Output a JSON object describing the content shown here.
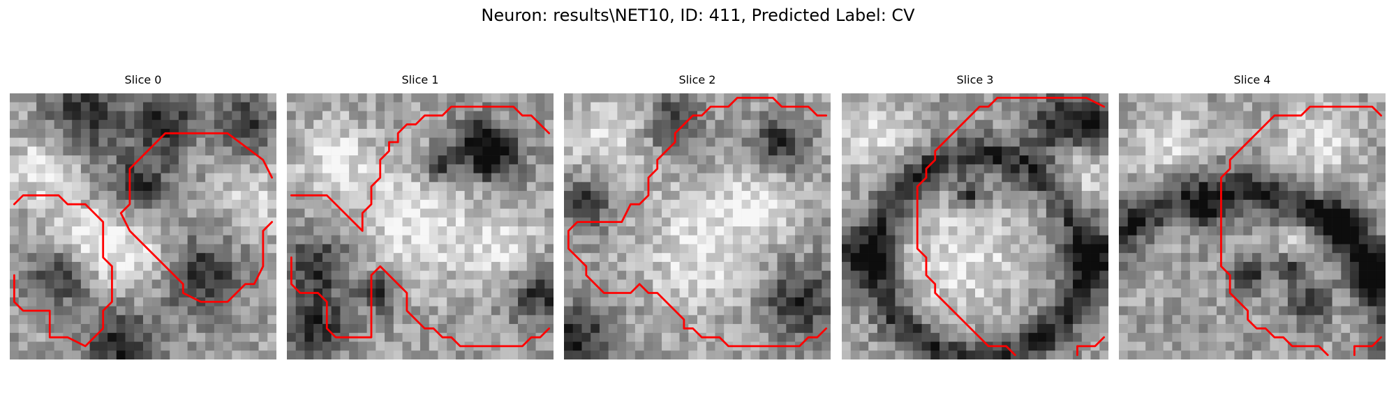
{
  "figure": {
    "title": "Neuron: results\\NET10, ID: 411, Predicted Label: CV"
  },
  "contour_color": "#ff0000",
  "panels": [
    {
      "title": "Slice 0",
      "contour_segments": [
        [
          [
            0.5,
            12.5
          ],
          [
            1.5,
            11.5
          ],
          [
            5.5,
            11.5
          ],
          [
            6.5,
            12.5
          ],
          [
            8.5,
            12.5
          ],
          [
            10.5,
            14.5
          ],
          [
            10.5,
            18.5
          ],
          [
            11.5,
            19.5
          ],
          [
            11.5,
            23.5
          ],
          [
            10.5,
            24.5
          ],
          [
            10.5,
            26.5
          ],
          [
            8.5,
            28.5
          ],
          [
            6.5,
            27.5
          ],
          [
            4.5,
            27.5
          ],
          [
            4.5,
            24.5
          ],
          [
            1.5,
            24.5
          ],
          [
            0.5,
            23.5
          ],
          [
            0.5,
            20.5
          ]
        ],
        [
          [
            29.5,
            9.5
          ],
          [
            28.5,
            7.5
          ],
          [
            24.5,
            4.5
          ],
          [
            17.5,
            4.5
          ],
          [
            13.5,
            8.5
          ],
          [
            13.5,
            12.5
          ],
          [
            12.5,
            13.5
          ],
          [
            13.5,
            15.5
          ],
          [
            14.5,
            16.5
          ],
          [
            19.5,
            21.5
          ],
          [
            19.5,
            22.5
          ],
          [
            21.5,
            23.5
          ],
          [
            24.5,
            23.5
          ],
          [
            26.5,
            21.5
          ],
          [
            27.5,
            21.5
          ],
          [
            28.5,
            19.5
          ],
          [
            28.5,
            15.5
          ],
          [
            29.5,
            14.5
          ]
        ]
      ],
      "shading": {
        "seed": 11,
        "dark_blobs": [
          [
            17,
            3,
            2.6
          ],
          [
            14,
            10,
            2.4
          ],
          [
            21,
            20,
            3
          ],
          [
            8,
            2,
            3
          ],
          [
            5,
            20,
            2.4
          ],
          [
            26,
            3,
            2
          ],
          [
            12,
            28,
            3
          ]
        ],
        "light_blobs": [
          [
            13,
            17,
            3.4
          ],
          [
            3,
            8,
            3
          ],
          [
            8,
            16,
            2.6
          ],
          [
            27,
            12,
            2.4
          ]
        ]
      }
    },
    {
      "title": "Slice 1",
      "contour_segments": [
        [
          [
            29.5,
            4.5
          ],
          [
            27.5,
            2.5
          ],
          [
            26.5,
            2.5
          ],
          [
            25.5,
            1.5
          ],
          [
            18.5,
            1.5
          ],
          [
            17.5,
            2.5
          ],
          [
            15.5,
            2.5
          ],
          [
            14.5,
            3.5
          ],
          [
            13.5,
            3.5
          ],
          [
            12.5,
            4.5
          ],
          [
            12.5,
            5.5
          ],
          [
            11.5,
            5.5
          ],
          [
            11.5,
            6.5
          ],
          [
            10.5,
            7.5
          ],
          [
            10.5,
            9.5
          ],
          [
            9.5,
            10.5
          ],
          [
            9.5,
            12.5
          ],
          [
            8.5,
            13.5
          ],
          [
            8.5,
            15.5
          ],
          [
            7.5,
            14.5
          ],
          [
            4.5,
            11.5
          ],
          [
            0.5,
            11.5
          ]
        ],
        [
          [
            0.5,
            18.5
          ],
          [
            0.5,
            21.5
          ],
          [
            1.5,
            22.5
          ],
          [
            3.5,
            22.5
          ],
          [
            4.5,
            23.5
          ],
          [
            4.5,
            26.5
          ],
          [
            5.5,
            27.5
          ],
          [
            9.5,
            27.5
          ],
          [
            9.5,
            20.5
          ],
          [
            10.5,
            19.5
          ],
          [
            13.5,
            22.5
          ],
          [
            13.5,
            24.5
          ],
          [
            15.5,
            26.5
          ],
          [
            16.5,
            26.5
          ],
          [
            17.5,
            27.5
          ],
          [
            18.5,
            27.5
          ],
          [
            19.5,
            28.5
          ],
          [
            26.5,
            28.5
          ],
          [
            27.5,
            27.5
          ],
          [
            28.5,
            27.5
          ],
          [
            29.5,
            26.5
          ]
        ]
      ],
      "shading": {
        "seed": 23,
        "dark_blobs": [
          [
            16.5,
            7.5,
            1.4
          ],
          [
            23,
            7,
            2
          ],
          [
            21,
            5,
            2.2
          ],
          [
            3,
            19,
            2.6
          ],
          [
            3,
            26,
            2.4
          ],
          [
            28,
            22,
            2.4
          ],
          [
            10,
            22,
            1.6
          ]
        ],
        "light_blobs": [
          [
            14,
            14,
            5
          ],
          [
            5,
            7,
            3
          ],
          [
            24,
            17,
            3
          ]
        ]
      }
    },
    {
      "title": "Slice 2",
      "contour_segments": [
        [
          [
            29.5,
            2.5
          ],
          [
            28.5,
            2.5
          ],
          [
            27.5,
            1.5
          ],
          [
            24.5,
            1.5
          ],
          [
            23.5,
            0.5
          ],
          [
            19.5,
            0.5
          ],
          [
            18.5,
            1.5
          ],
          [
            16.5,
            1.5
          ],
          [
            15.5,
            2.5
          ],
          [
            14.5,
            2.5
          ],
          [
            12.5,
            4.5
          ],
          [
            12.5,
            5.5
          ],
          [
            10.5,
            7.5
          ],
          [
            10.5,
            8.5
          ],
          [
            9.5,
            9.5
          ],
          [
            9.5,
            11.5
          ],
          [
            8.5,
            12.5
          ],
          [
            7.5,
            12.5
          ],
          [
            6.5,
            14.5
          ],
          [
            1.5,
            14.5
          ],
          [
            0.5,
            15.5
          ],
          [
            0.5,
            17.5
          ],
          [
            2.5,
            19.5
          ],
          [
            2.5,
            20.5
          ],
          [
            3.5,
            21.5
          ],
          [
            4.5,
            22.5
          ],
          [
            7.5,
            22.5
          ],
          [
            8.5,
            21.5
          ],
          [
            9.5,
            22.5
          ],
          [
            10.5,
            22.5
          ],
          [
            13.5,
            25.5
          ],
          [
            13.5,
            26.5
          ],
          [
            14.5,
            26.5
          ],
          [
            15.5,
            27.5
          ],
          [
            17.5,
            27.5
          ],
          [
            18.5,
            28.5
          ],
          [
            26.5,
            28.5
          ],
          [
            27.5,
            27.5
          ],
          [
            28.5,
            27.5
          ],
          [
            29.5,
            26.5
          ]
        ]
      ],
      "shading": {
        "seed": 37,
        "dark_blobs": [
          [
            1,
            27,
            2.6
          ],
          [
            26,
            23,
            3
          ],
          [
            2,
            12,
            2
          ],
          [
            24,
            5,
            2
          ],
          [
            12,
            3,
            2
          ]
        ],
        "light_blobs": [
          [
            15,
            17,
            5
          ],
          [
            4,
            4,
            3
          ],
          [
            22,
            12,
            2.6
          ]
        ]
      }
    },
    {
      "title": "Slice 3",
      "contour_segments": [
        [
          [
            29.5,
            1.5
          ],
          [
            27.5,
            0.5
          ],
          [
            17.5,
            0.5
          ],
          [
            16.5,
            1.5
          ],
          [
            15.5,
            1.5
          ],
          [
            10.5,
            6.5
          ],
          [
            10.5,
            7.5
          ],
          [
            9.5,
            8.5
          ],
          [
            9.5,
            9.5
          ],
          [
            8.5,
            10.5
          ],
          [
            8.5,
            17.5
          ],
          [
            9.5,
            18.5
          ],
          [
            9.5,
            20.5
          ],
          [
            10.5,
            21.5
          ],
          [
            10.5,
            22.5
          ],
          [
            15.5,
            27.5
          ],
          [
            16.5,
            28.5
          ],
          [
            18.5,
            28.5
          ],
          [
            19.5,
            29.5
          ]
        ],
        [
          [
            26.5,
            29.5
          ],
          [
            26.5,
            28.5
          ],
          [
            28.5,
            28.5
          ],
          [
            29.5,
            27.5
          ]
        ]
      ],
      "shading": {
        "seed": 53,
        "dark_blobs": [
          [
            24,
            3,
            2.4
          ],
          [
            28,
            3,
            1.8
          ],
          [
            1,
            18,
            2
          ],
          [
            29,
            18,
            2
          ],
          [
            14,
            11,
            1.2
          ]
        ],
        "light_blobs": [
          [
            13,
            18,
            4.6
          ],
          [
            3,
            4,
            3
          ],
          [
            26,
            9,
            2.4
          ]
        ],
        "ring": [
          15,
          18,
          11.5,
          1.6
        ]
      }
    },
    {
      "title": "Slice 4",
      "contour_segments": [
        [
          [
            29.5,
            2.5
          ],
          [
            28.5,
            1.5
          ],
          [
            21.5,
            1.5
          ],
          [
            20.5,
            2.5
          ],
          [
            17.5,
            2.5
          ],
          [
            12.5,
            7.5
          ],
          [
            12.5,
            8.5
          ],
          [
            11.5,
            9.5
          ],
          [
            11.5,
            10.5
          ],
          [
            11.5,
            19.5
          ],
          [
            12.5,
            20.5
          ],
          [
            12.5,
            22.5
          ],
          [
            13.5,
            23.5
          ],
          [
            14.5,
            24.5
          ],
          [
            14.5,
            25.5
          ],
          [
            15.5,
            26.5
          ],
          [
            16.5,
            26.5
          ],
          [
            17.5,
            27.5
          ],
          [
            18.5,
            27.5
          ],
          [
            19.5,
            28.5
          ],
          [
            22.5,
            28.5
          ],
          [
            23.5,
            29.5
          ]
        ],
        [
          [
            26.5,
            29.5
          ],
          [
            26.5,
            28.5
          ],
          [
            28.5,
            28.5
          ],
          [
            29.5,
            27.5
          ]
        ]
      ],
      "shading": {
        "seed": 71,
        "dark_blobs": [
          [
            24,
            14,
            1.8
          ],
          [
            28,
            19,
            1.6
          ],
          [
            19,
            19,
            1.4
          ],
          [
            14,
            20,
            1.4
          ],
          [
            21,
            23,
            1.6
          ],
          [
            9,
            13,
            1.2
          ]
        ],
        "light_blobs": [
          [
            22,
            5,
            3
          ],
          [
            5,
            5,
            3
          ],
          [
            20,
            17,
            2
          ]
        ],
        "ring": [
          12,
          29,
          18.5,
          1.8
        ]
      }
    }
  ]
}
